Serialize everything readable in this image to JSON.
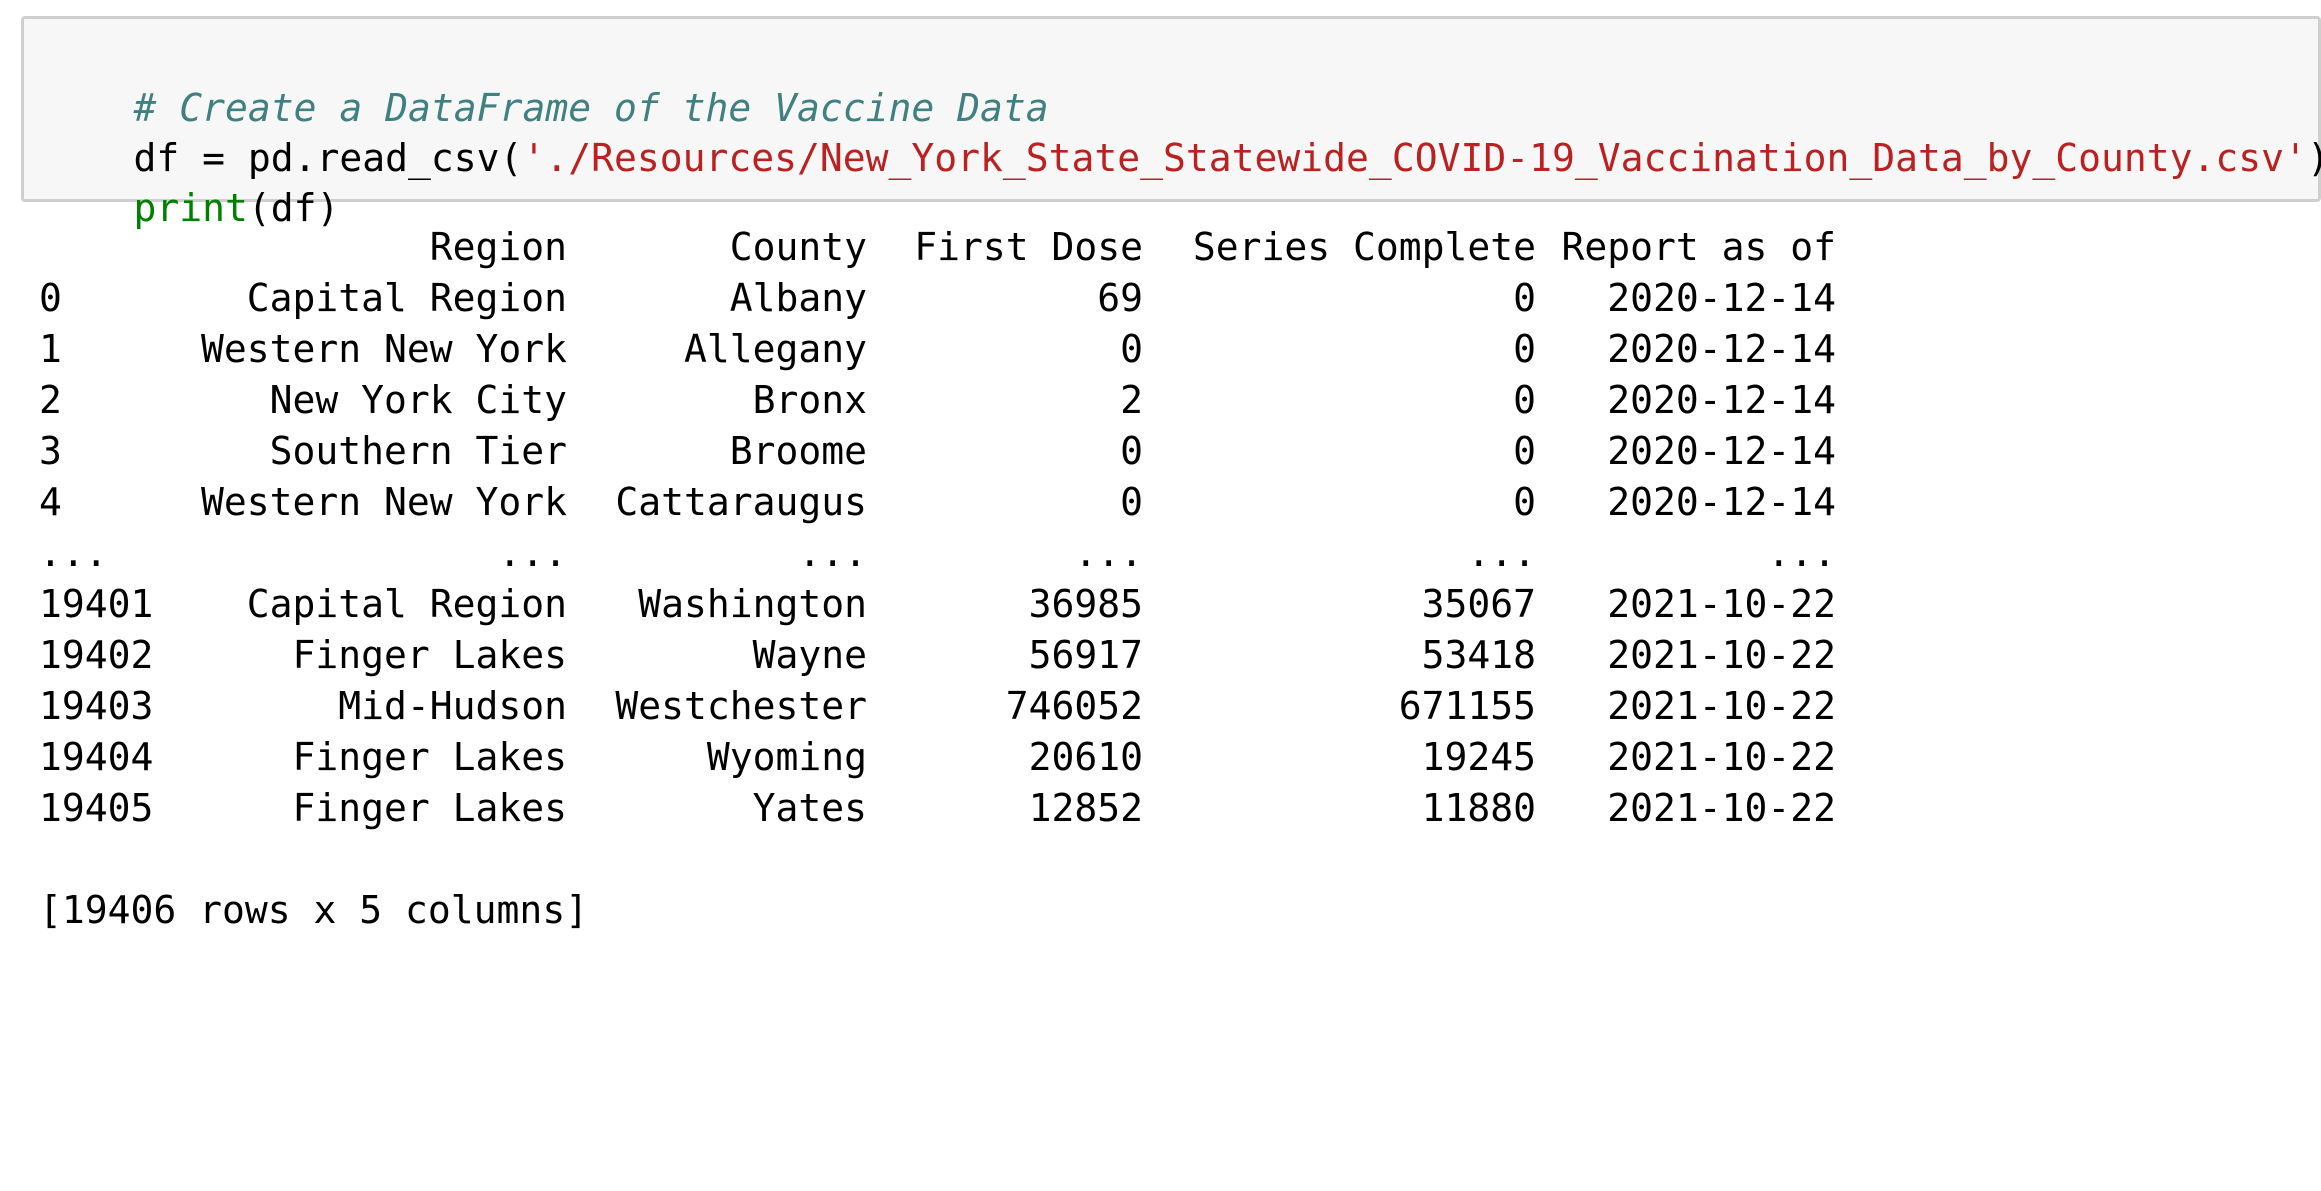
{
  "code": {
    "comment": "# Create a DataFrame of the Vaccine Data",
    "line2": {
      "prefix": "df = pd.read_csv(",
      "string": "'./Resources/New_York_State_Statewide_COVID-19_Vaccination_Data_by_County.csv'",
      "suffix": ")"
    },
    "line3": {
      "builtin": "print",
      "rest": "(df)"
    }
  },
  "output": {
    "headers": {
      "region": "Region",
      "county": "County",
      "first": "First Dose",
      "series": "Series Complete",
      "date": "Report as of"
    },
    "rows": [
      {
        "idx": "0",
        "region": "Capital Region",
        "county": "Albany",
        "first": "69",
        "series": "0",
        "date": "2020-12-14"
      },
      {
        "idx": "1",
        "region": "Western New York",
        "county": "Allegany",
        "first": "0",
        "series": "0",
        "date": "2020-12-14"
      },
      {
        "idx": "2",
        "region": "New York City",
        "county": "Bronx",
        "first": "2",
        "series": "0",
        "date": "2020-12-14"
      },
      {
        "idx": "3",
        "region": "Southern Tier",
        "county": "Broome",
        "first": "0",
        "series": "0",
        "date": "2020-12-14"
      },
      {
        "idx": "4",
        "region": "Western New York",
        "county": "Cattaraugus",
        "first": "0",
        "series": "0",
        "date": "2020-12-14"
      },
      {
        "idx": "...",
        "region": "...",
        "county": "...",
        "first": "...",
        "series": "...",
        "date": "..."
      },
      {
        "idx": "19401",
        "region": "Capital Region",
        "county": "Washington",
        "first": "36985",
        "series": "35067",
        "date": "2021-10-22"
      },
      {
        "idx": "19402",
        "region": "Finger Lakes",
        "county": "Wayne",
        "first": "56917",
        "series": "53418",
        "date": "2021-10-22"
      },
      {
        "idx": "19403",
        "region": "Mid-Hudson",
        "county": "Westchester",
        "first": "746052",
        "series": "671155",
        "date": "2021-10-22"
      },
      {
        "idx": "19404",
        "region": "Finger Lakes",
        "county": "Wyoming",
        "first": "20610",
        "series": "19245",
        "date": "2021-10-22"
      },
      {
        "idx": "19405",
        "region": "Finger Lakes",
        "county": "Yates",
        "first": "12852",
        "series": "11880",
        "date": "2021-10-22"
      }
    ],
    "summary": "[19406 rows x 5 columns]"
  }
}
